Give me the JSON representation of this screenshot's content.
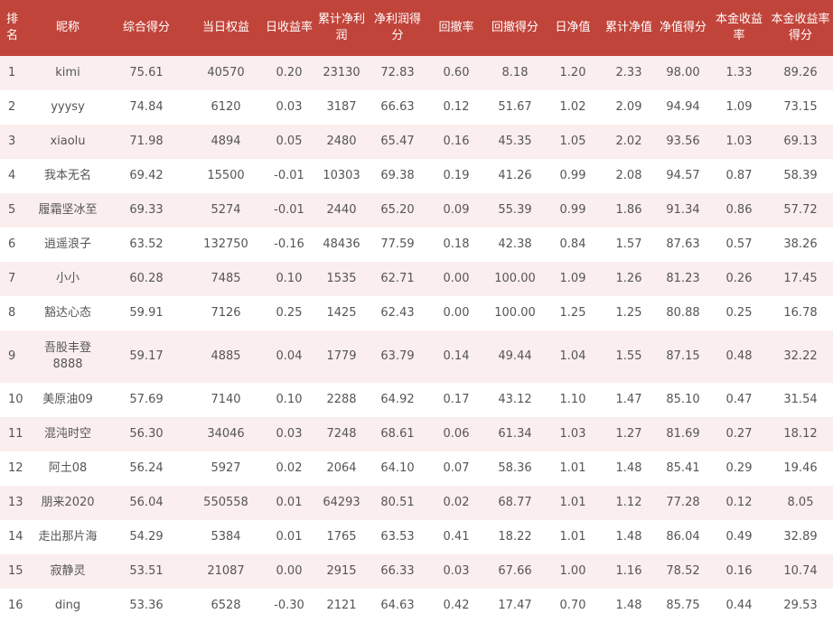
{
  "table": {
    "headers": [
      "排名",
      "昵称",
      "综合得分",
      "当日权益",
      "日收益率",
      "累计净利润",
      "净利润得分",
      "回撤率",
      "回撤得分",
      "日净值",
      "累计净值",
      "净值得分",
      "本金收益率",
      "本金收益率得分"
    ],
    "rows": [
      [
        "1",
        "kimi",
        "75.61",
        "40570",
        "0.20",
        "23130",
        "72.83",
        "0.60",
        "8.18",
        "1.20",
        "2.33",
        "98.00",
        "1.33",
        "89.26"
      ],
      [
        "2",
        "yyysy",
        "74.84",
        "6120",
        "0.03",
        "3187",
        "66.63",
        "0.12",
        "51.67",
        "1.02",
        "2.09",
        "94.94",
        "1.09",
        "73.15"
      ],
      [
        "3",
        "xiaolu",
        "71.98",
        "4894",
        "0.05",
        "2480",
        "65.47",
        "0.16",
        "45.35",
        "1.05",
        "2.02",
        "93.56",
        "1.03",
        "69.13"
      ],
      [
        "4",
        "我本无名",
        "69.42",
        "15500",
        "-0.01",
        "10303",
        "69.38",
        "0.19",
        "41.26",
        "0.99",
        "2.08",
        "94.57",
        "0.87",
        "58.39"
      ],
      [
        "5",
        "履霜坚冰至",
        "69.33",
        "5274",
        "-0.01",
        "2440",
        "65.20",
        "0.09",
        "55.39",
        "0.99",
        "1.86",
        "91.34",
        "0.86",
        "57.72"
      ],
      [
        "6",
        "逍遥浪子",
        "63.52",
        "132750",
        "-0.16",
        "48436",
        "77.59",
        "0.18",
        "42.38",
        "0.84",
        "1.57",
        "87.63",
        "0.57",
        "38.26"
      ],
      [
        "7",
        "小小",
        "60.28",
        "7485",
        "0.10",
        "1535",
        "62.71",
        "0.00",
        "100.00",
        "1.09",
        "1.26",
        "81.23",
        "0.26",
        "17.45"
      ],
      [
        "8",
        "豁达心态",
        "59.91",
        "7126",
        "0.25",
        "1425",
        "62.43",
        "0.00",
        "100.00",
        "1.25",
        "1.25",
        "80.88",
        "0.25",
        "16.78"
      ],
      [
        "9",
        "吾股丰登8888",
        "59.17",
        "4885",
        "0.04",
        "1779",
        "63.79",
        "0.14",
        "49.44",
        "1.04",
        "1.55",
        "87.15",
        "0.48",
        "32.22"
      ],
      [
        "10",
        "美原油09",
        "57.69",
        "7140",
        "0.10",
        "2288",
        "64.92",
        "0.17",
        "43.12",
        "1.10",
        "1.47",
        "85.10",
        "0.47",
        "31.54"
      ],
      [
        "11",
        "混沌时空",
        "56.30",
        "34046",
        "0.03",
        "7248",
        "68.61",
        "0.06",
        "61.34",
        "1.03",
        "1.27",
        "81.69",
        "0.27",
        "18.12"
      ],
      [
        "12",
        "阿土08",
        "56.24",
        "5927",
        "0.02",
        "2064",
        "64.10",
        "0.07",
        "58.36",
        "1.01",
        "1.48",
        "85.41",
        "0.29",
        "19.46"
      ],
      [
        "13",
        "朋来2020",
        "56.04",
        "550558",
        "0.01",
        "64293",
        "80.51",
        "0.02",
        "68.77",
        "1.01",
        "1.12",
        "77.28",
        "0.12",
        "8.05"
      ],
      [
        "14",
        "走出那片海",
        "54.29",
        "5384",
        "0.01",
        "1765",
        "63.53",
        "0.41",
        "18.22",
        "1.01",
        "1.48",
        "86.04",
        "0.49",
        "32.89"
      ],
      [
        "15",
        "寂静灵",
        "53.51",
        "21087",
        "0.00",
        "2915",
        "66.33",
        "0.03",
        "67.66",
        "1.00",
        "1.16",
        "78.52",
        "0.16",
        "10.74"
      ],
      [
        "16",
        "ding",
        "53.36",
        "6528",
        "-0.30",
        "2121",
        "64.63",
        "0.42",
        "17.47",
        "0.70",
        "1.48",
        "85.75",
        "0.44",
        "29.53"
      ]
    ]
  },
  "colors": {
    "header_bg": "#c1443a",
    "header_text": "#ffffff",
    "row_stripe": "#fbeeee",
    "cell_text": "#555555"
  }
}
